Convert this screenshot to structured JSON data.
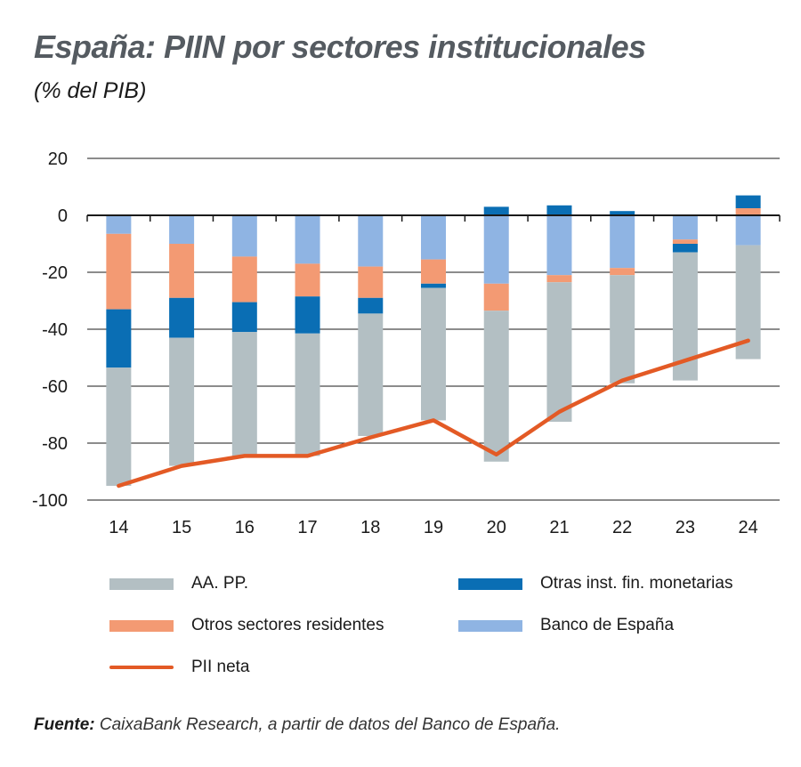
{
  "header": {
    "title": "España: PIIN por sectores institucionales",
    "subtitle": "(% del PIB)"
  },
  "source": {
    "label": "Fuente:",
    "text": "CaixaBank Research, a partir de datos del Banco de España."
  },
  "colors": {
    "aapp": "#b3bfc3",
    "otros_sectores": "#f39a73",
    "otras_ifm": "#0a6eb4",
    "banco_espana": "#8fb4e3",
    "pii_neta": "#e35a25",
    "axis": "#1a1a1a",
    "grid": "#1a1a1a"
  },
  "chart_data": {
    "type": "bar",
    "stacked": true,
    "categories": [
      "14",
      "15",
      "16",
      "17",
      "18",
      "19",
      "20",
      "21",
      "22",
      "23",
      "24"
    ],
    "ylim": [
      -100,
      20
    ],
    "yticks": [
      20,
      0,
      -20,
      -40,
      -60,
      -80,
      -100
    ],
    "grid": true,
    "legend_position": "bottom",
    "series": [
      {
        "key": "banco_espana",
        "name": "Banco de España",
        "values": [
          -6.5,
          -10,
          -14.5,
          -17,
          -18,
          -15.5,
          -24,
          -21,
          -18.5,
          -8.5,
          -10.5
        ]
      },
      {
        "key": "otros_sectores",
        "name": "Otros sectores residentes",
        "values": [
          -26.5,
          -19,
          -16,
          -11.5,
          -11,
          -8.5,
          -9.5,
          -2.5,
          -2.5,
          -1.5,
          2.5
        ]
      },
      {
        "key": "otras_ifm",
        "name": "Otras inst. fin. monetarias",
        "values": [
          -20.5,
          -14,
          -10.5,
          -13,
          -5.5,
          -1.5,
          3,
          3.5,
          1.5,
          -3,
          4.5
        ]
      },
      {
        "key": "aapp",
        "name": "AA. PP.",
        "values": [
          -41.5,
          -45,
          -44,
          -43,
          -43,
          -46.5,
          -53,
          -49,
          -38,
          -45,
          -40
        ]
      }
    ],
    "line": {
      "key": "pii_neta",
      "name": "PII neta",
      "values": [
        -95,
        -88,
        -84.5,
        -84.5,
        -78,
        -72,
        -84,
        -69,
        -58,
        -51,
        -44
      ]
    },
    "legend": [
      {
        "key": "aapp",
        "label": "AA. PP.",
        "kind": "bar"
      },
      {
        "key": "otras_ifm",
        "label": "Otras inst. fin. monetarias",
        "kind": "bar"
      },
      {
        "key": "otros_sectores",
        "label": "Otros sectores residentes",
        "kind": "bar"
      },
      {
        "key": "banco_espana",
        "label": "Banco de España",
        "kind": "bar"
      },
      {
        "key": "pii_neta",
        "label": "PII neta",
        "kind": "line"
      }
    ]
  }
}
